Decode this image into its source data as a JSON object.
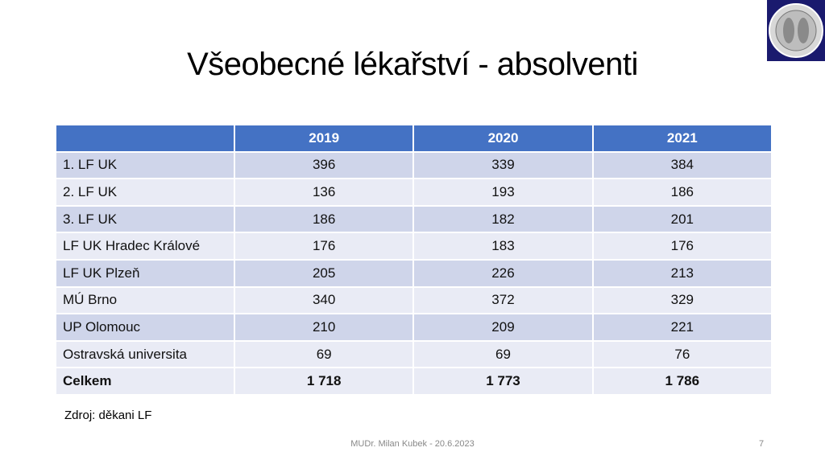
{
  "title": "Všeobecné lékařství - absolventi",
  "table": {
    "headers": [
      "",
      "2019",
      "2020",
      "2021"
    ],
    "rows": [
      [
        "1. LF UK",
        "396",
        "339",
        "384"
      ],
      [
        "2. LF UK",
        "136",
        "193",
        "186"
      ],
      [
        "3. LF UK",
        "186",
        "182",
        "201"
      ],
      [
        "LF UK Hradec Králové",
        "176",
        "183",
        "176"
      ],
      [
        "LF UK Plzeň",
        "205",
        "226",
        "213"
      ],
      [
        "MÚ Brno",
        "340",
        "372",
        "329"
      ],
      [
        "UP Olomouc",
        "210",
        "209",
        "221"
      ],
      [
        "Ostravská universita",
        "69",
        "69",
        "76"
      ]
    ],
    "total": [
      "Celkem",
      "1 718",
      "1 773",
      "1 786"
    ]
  },
  "source": "Zdroj: děkani LF",
  "footer": "MUDr. Milan Kubek - 20.6.2023",
  "page_number": "7",
  "colors": {
    "header": "#4472c4",
    "row_odd": "#cfd5ea",
    "row_even": "#e9ebf5",
    "seal_bg": "#1a1a6e"
  },
  "logo": "university-seal"
}
